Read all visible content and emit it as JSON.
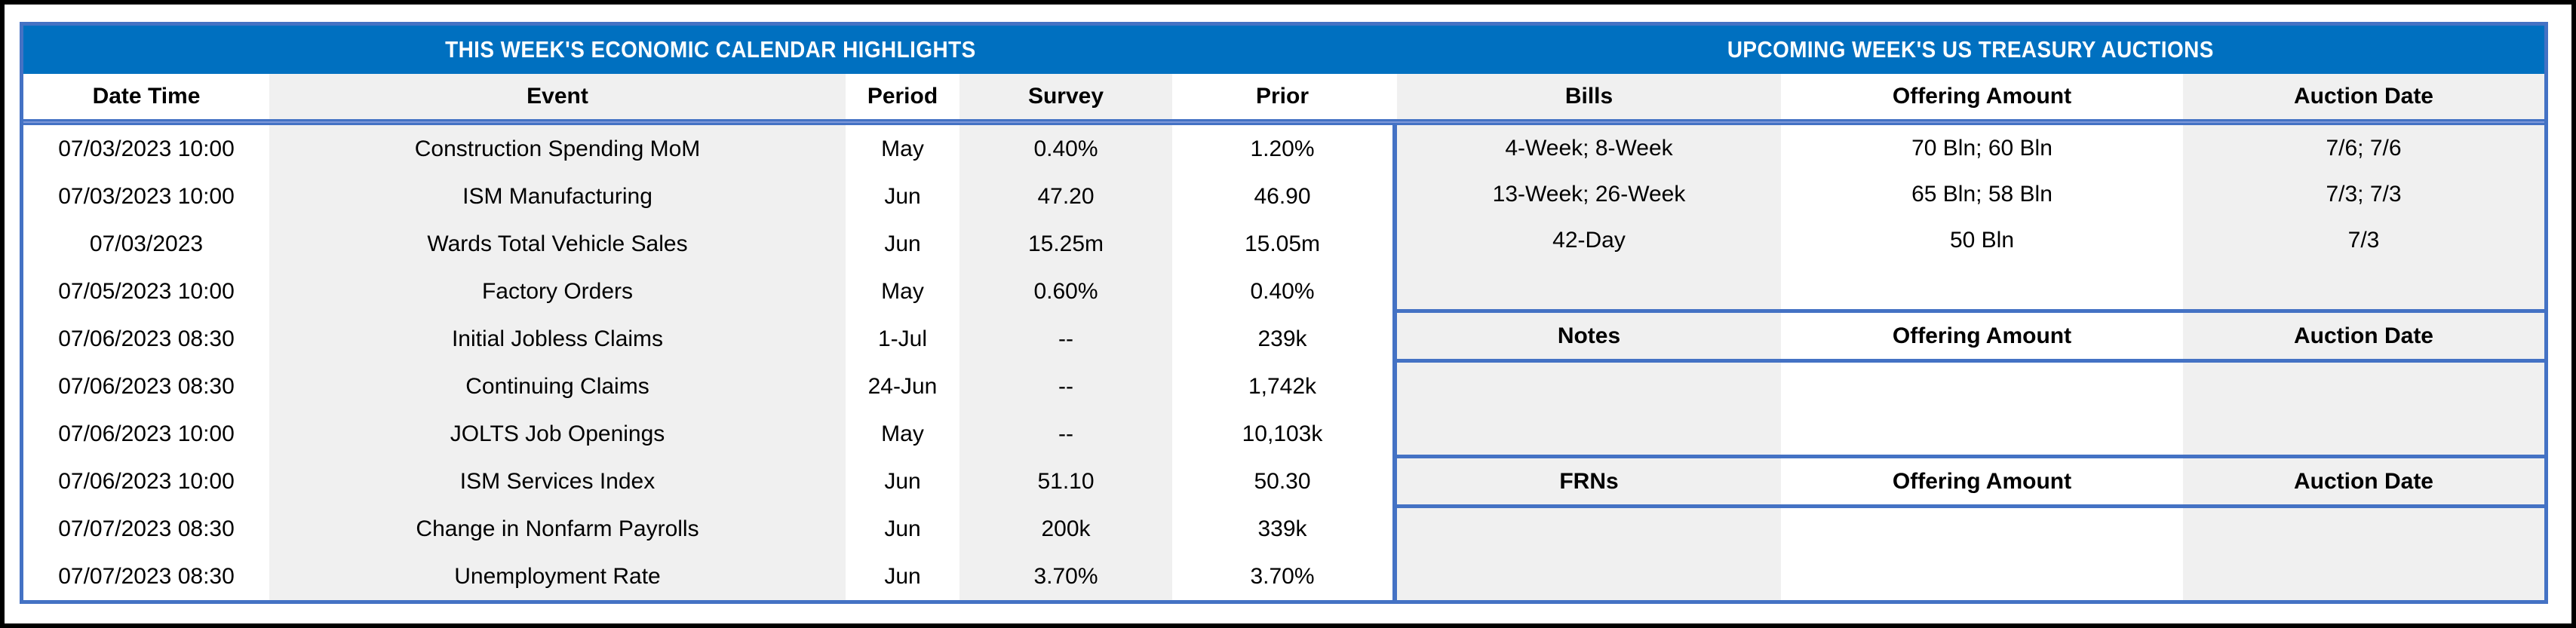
{
  "economic_calendar": {
    "title": "THIS WEEK'S ECONOMIC CALENDAR HIGHLIGHTS",
    "columns": [
      "Date Time",
      "Event",
      "Period",
      "Survey",
      "Prior"
    ],
    "rows": [
      {
        "date_time": "07/03/2023 10:00",
        "event": "Construction Spending MoM",
        "period": "May",
        "survey": "0.40%",
        "prior": "1.20%"
      },
      {
        "date_time": "07/03/2023 10:00",
        "event": "ISM Manufacturing",
        "period": "Jun",
        "survey": "47.20",
        "prior": "46.90"
      },
      {
        "date_time": "07/03/2023",
        "event": "Wards Total Vehicle Sales",
        "period": "Jun",
        "survey": "15.25m",
        "prior": "15.05m"
      },
      {
        "date_time": "07/05/2023 10:00",
        "event": "Factory Orders",
        "period": "May",
        "survey": "0.60%",
        "prior": "0.40%"
      },
      {
        "date_time": "07/06/2023 08:30",
        "event": "Initial Jobless Claims",
        "period": "1-Jul",
        "survey": "--",
        "prior": "239k"
      },
      {
        "date_time": "07/06/2023 08:30",
        "event": "Continuing Claims",
        "period": "24-Jun",
        "survey": "--",
        "prior": "1,742k"
      },
      {
        "date_time": "07/06/2023 10:00",
        "event": "JOLTS Job Openings",
        "period": "May",
        "survey": "--",
        "prior": "10,103k"
      },
      {
        "date_time": "07/06/2023 10:00",
        "event": "ISM Services Index",
        "period": "Jun",
        "survey": "51.10",
        "prior": "50.30"
      },
      {
        "date_time": "07/07/2023 08:30",
        "event": "Change in Nonfarm Payrolls",
        "period": "Jun",
        "survey": "200k",
        "prior": "339k"
      },
      {
        "date_time": "07/07/2023 08:30",
        "event": "Unemployment Rate",
        "period": "Jun",
        "survey": "3.70%",
        "prior": "3.70%"
      }
    ]
  },
  "treasury_auctions": {
    "title": "UPCOMING WEEK'S US TREASURY AUCTIONS",
    "sections": [
      {
        "type": "Bills",
        "header": [
          "Bills",
          "Offering Amount",
          "Auction Date"
        ],
        "rows": [
          [
            "4-Week; 8-Week",
            "70 Bln; 60 Bln",
            "7/6; 7/6"
          ],
          [
            "13-Week; 26-Week",
            "65 Bln; 58 Bln",
            "7/3; 7/3"
          ],
          [
            "42-Day",
            "50 Bln",
            "7/3"
          ],
          [
            "",
            "",
            ""
          ]
        ]
      },
      {
        "type": "Notes",
        "header": [
          "Notes",
          "Offering Amount",
          "Auction Date"
        ],
        "rows": [
          [
            "",
            "",
            ""
          ],
          [
            "",
            "",
            ""
          ]
        ]
      },
      {
        "type": "FRNs",
        "header": [
          "FRNs",
          "Offering Amount",
          "Auction Date"
        ],
        "rows": [
          [
            "",
            "",
            ""
          ],
          [
            "",
            "",
            ""
          ]
        ]
      }
    ]
  },
  "colors": {
    "title_bar": "#0070C0",
    "border_blue": "#4472C4",
    "stripe_fill": "#F0F0F0",
    "outer_frame": "#000000"
  }
}
